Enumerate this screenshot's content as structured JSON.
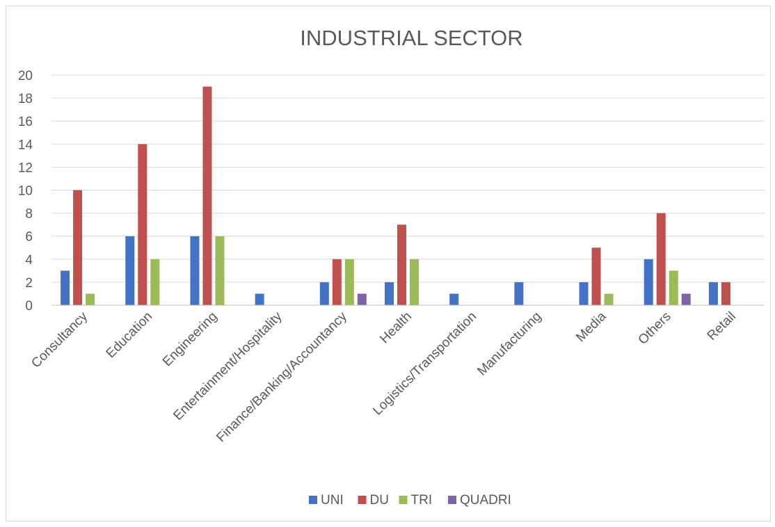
{
  "chart_data": {
    "type": "bar",
    "title": "INDUSTRIAL SECTOR",
    "xlabel": "",
    "ylabel": "",
    "ylim": [
      0,
      20
    ],
    "yticks": [
      0,
      2,
      4,
      6,
      8,
      10,
      12,
      14,
      16,
      18,
      20
    ],
    "grid": true,
    "legend_position": "bottom",
    "categories": [
      "Consultancy",
      "Education",
      "Engineering",
      "Entertainment/Hospitality",
      "Finance/Banking/Accountancy",
      "Health",
      "Logistics/Transportation",
      "Manufacturing",
      "Media",
      "Others",
      "Retail"
    ],
    "series": [
      {
        "name": "UNI",
        "color": "#4472c4",
        "values": [
          3,
          6,
          6,
          1,
          2,
          2,
          1,
          2,
          2,
          4,
          2
        ]
      },
      {
        "name": "DU",
        "color": "#c0504d",
        "values": [
          10,
          14,
          19,
          0,
          4,
          7,
          0,
          0,
          5,
          8,
          2
        ]
      },
      {
        "name": "TRI",
        "color": "#9bbb59",
        "values": [
          1,
          4,
          6,
          0,
          4,
          4,
          0,
          0,
          1,
          3,
          0
        ]
      },
      {
        "name": "QUADRI",
        "color": "#8064a2",
        "values": [
          0,
          0,
          0,
          0,
          1,
          0,
          0,
          0,
          0,
          1,
          0
        ]
      }
    ]
  }
}
